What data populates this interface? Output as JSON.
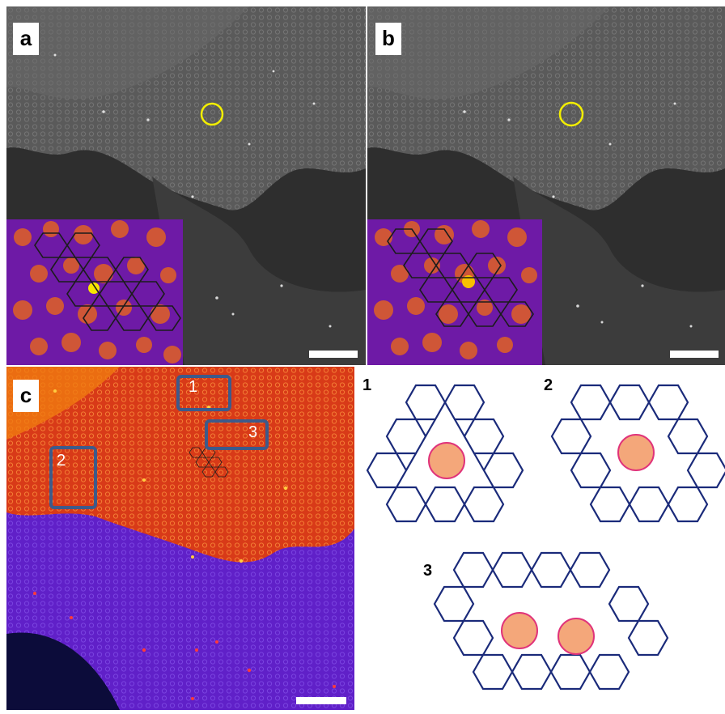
{
  "panels": {
    "a": {
      "label": "a"
    },
    "b": {
      "label": "b"
    },
    "c": {
      "label": "c",
      "boxes": [
        "1",
        "3",
        "2"
      ]
    }
  },
  "schematics": [
    {
      "label": "1",
      "atoms": 1
    },
    {
      "label": "2",
      "atoms": 1
    },
    {
      "label": "3",
      "atoms": 2
    }
  ],
  "colors": {
    "grayscale_bg": "#4a4a4a",
    "inset_purple": "#7a1fa8",
    "inset_orange": "#f06a12",
    "heat_top": "#d8420e",
    "heat_bottom": "#5a1ec8",
    "highlight_circle": "#f2ee00",
    "box_outline": "#3d5a8a",
    "hex_line": "#1a2a7a",
    "atom_fill": "#f4a77a",
    "atom_edge": "#e0337a"
  }
}
